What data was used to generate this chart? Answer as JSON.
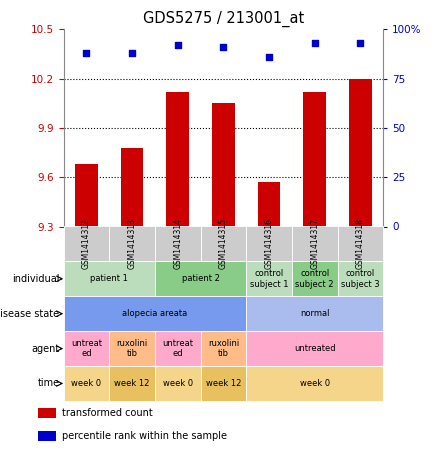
{
  "title": "GDS5275 / 213001_at",
  "samples": [
    "GSM1414312",
    "GSM1414313",
    "GSM1414314",
    "GSM1414315",
    "GSM1414316",
    "GSM1414317",
    "GSM1414318"
  ],
  "bar_values": [
    9.68,
    9.78,
    10.12,
    10.05,
    9.57,
    10.12,
    10.2
  ],
  "percentile_values": [
    88,
    88,
    92,
    91,
    86,
    93,
    93
  ],
  "ylim_left": [
    9.3,
    10.5
  ],
  "ylim_right": [
    0,
    100
  ],
  "yticks_left": [
    9.3,
    9.6,
    9.9,
    10.2,
    10.5
  ],
  "yticks_right": [
    0,
    25,
    50,
    75,
    100
  ],
  "ytick_labels_right": [
    "0",
    "25",
    "50",
    "75",
    "100%"
  ],
  "bar_color": "#cc0000",
  "dot_color": "#0000cc",
  "grid_color": "#000000",
  "annotation_rows": [
    {
      "label": "individual",
      "cells": [
        {
          "text": "patient 1",
          "span": 2,
          "color": "#bbddbb"
        },
        {
          "text": "patient 2",
          "span": 2,
          "color": "#88cc88"
        },
        {
          "text": "control\nsubject 1",
          "span": 1,
          "color": "#bbddbb"
        },
        {
          "text": "control\nsubject 2",
          "span": 1,
          "color": "#88cc88"
        },
        {
          "text": "control\nsubject 3",
          "span": 1,
          "color": "#bbddbb"
        }
      ]
    },
    {
      "label": "disease state",
      "cells": [
        {
          "text": "alopecia areata",
          "span": 4,
          "color": "#7799ee"
        },
        {
          "text": "normal",
          "span": 3,
          "color": "#aabbee"
        }
      ]
    },
    {
      "label": "agent",
      "cells": [
        {
          "text": "untreat\ned",
          "span": 1,
          "color": "#ffaacc"
        },
        {
          "text": "ruxolini\ntib",
          "span": 1,
          "color": "#ffbb88"
        },
        {
          "text": "untreat\ned",
          "span": 1,
          "color": "#ffaacc"
        },
        {
          "text": "ruxolini\ntib",
          "span": 1,
          "color": "#ffbb88"
        },
        {
          "text": "untreated",
          "span": 3,
          "color": "#ffaacc"
        }
      ]
    },
    {
      "label": "time",
      "cells": [
        {
          "text": "week 0",
          "span": 1,
          "color": "#f5d58a"
        },
        {
          "text": "week 12",
          "span": 1,
          "color": "#e8c060"
        },
        {
          "text": "week 0",
          "span": 1,
          "color": "#f5d58a"
        },
        {
          "text": "week 12",
          "span": 1,
          "color": "#e8c060"
        },
        {
          "text": "week 0",
          "span": 3,
          "color": "#f5d58a"
        }
      ]
    }
  ],
  "legend_items": [
    {
      "color": "#cc0000",
      "label": "transformed count"
    },
    {
      "color": "#0000cc",
      "label": "percentile rank within the sample"
    }
  ]
}
